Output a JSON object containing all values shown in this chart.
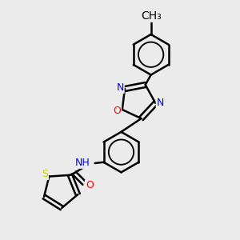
{
  "bg_color": "#ebebeb",
  "bond_color": "#000000",
  "bond_width": 1.8,
  "atom_colors": {
    "N": "#0000ff",
    "O": "#ff0000",
    "S": "#cccc00",
    "C": "#000000",
    "H": "#000000"
  },
  "font_size": 9
}
